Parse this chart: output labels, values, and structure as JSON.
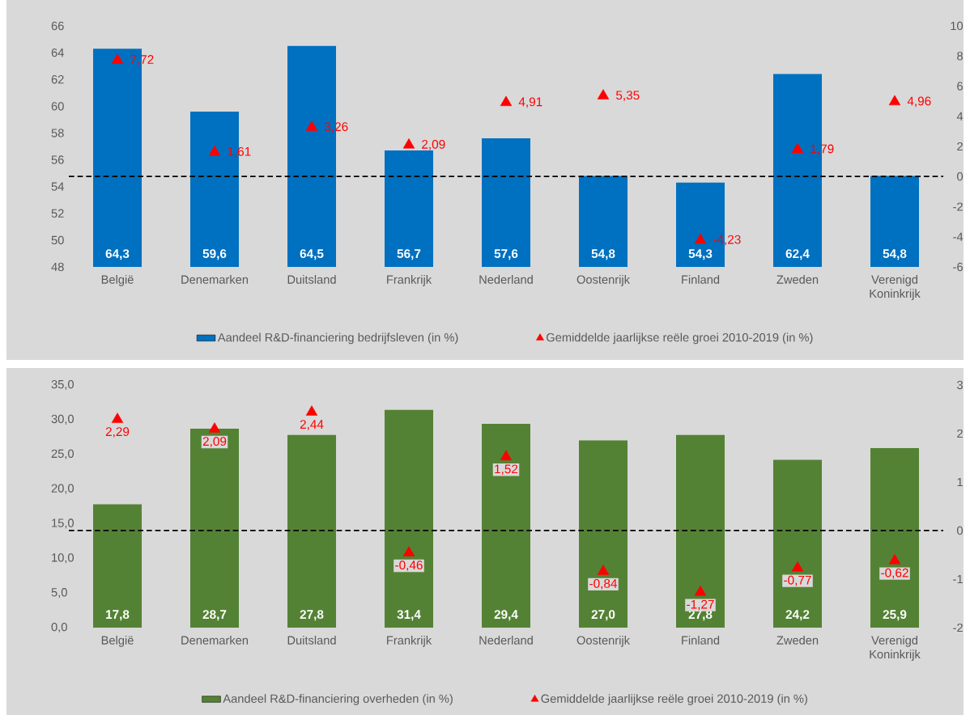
{
  "chart_data": [
    {
      "type": "bar",
      "categories": [
        "België",
        "Denemarken",
        "Duitsland",
        "Frankrijk",
        "Nederland",
        "Oostenrijk",
        "Finland",
        "Zweden",
        "Verenigd Koninkrijk"
      ],
      "series": [
        {
          "name": "Aandeel R&D-financiering bedrijfsleven (in %)",
          "color": "#0070c0",
          "values": [
            64.3,
            59.6,
            64.5,
            56.7,
            57.6,
            54.8,
            54.3,
            62.4,
            54.8
          ],
          "value_labels": [
            "64,3",
            "59,6",
            "64,5",
            "56,7",
            "57,6",
            "54,8",
            "54,3",
            "62,4",
            "54,8"
          ]
        },
        {
          "name": "Gemiddelde jaarlijkse reële groei 2010-2019 (in %)",
          "type": "scatter",
          "axis": "y2",
          "marker": "triangle",
          "color": "#ff0000",
          "values": [
            7.72,
            1.61,
            3.26,
            2.09,
            4.91,
            5.35,
            -4.23,
            1.79,
            4.96
          ],
          "value_labels": [
            "7,72",
            "1,61",
            "3,26",
            "2,09",
            "4,91",
            "5,35",
            "-4,23",
            "1,79",
            "4,96"
          ]
        }
      ],
      "ylim": [
        48,
        66
      ],
      "yticks": [
        48,
        50,
        52,
        54,
        56,
        58,
        60,
        62,
        64,
        66
      ],
      "y2lim": [
        -6,
        10
      ],
      "y2ticks": [
        -6,
        -4,
        -2,
        0,
        2,
        4,
        6,
        8,
        10
      ],
      "ref_lines": [
        {
          "axis": "y2",
          "value": 0,
          "line_style": "dashed",
          "color": "#000000"
        }
      ],
      "legend": "bottom"
    },
    {
      "type": "bar",
      "categories": [
        "België",
        "Denemarken",
        "Duitsland",
        "Frankrijk",
        "Nederland",
        "Oostenrijk",
        "Finland",
        "Zweden",
        "Verenigd Koninkrijk"
      ],
      "series": [
        {
          "name": "Aandeel R&D-financiering overheden (in %)",
          "color": "#548235",
          "values": [
            17.8,
            28.7,
            27.8,
            31.4,
            29.4,
            27.0,
            27.8,
            24.2,
            25.9
          ],
          "value_labels": [
            "17,8",
            "28,7",
            "27,8",
            "31,4",
            "29,4",
            "27,0",
            "27,8",
            "24,2",
            "25,9"
          ]
        },
        {
          "name": "Gemiddelde jaarlijkse reële groei 2010-2019 (in %)",
          "type": "scatter",
          "axis": "y2",
          "marker": "triangle",
          "color": "#ff0000",
          "values": [
            2.29,
            2.09,
            2.44,
            -0.46,
            1.52,
            -0.84,
            -1.27,
            -0.77,
            -0.62
          ],
          "value_labels": [
            "2,29",
            "2,09",
            "2,44",
            "-0,46",
            "1,52",
            "-0,84",
            "-1,27",
            "-0,77",
            "-0,62"
          ]
        }
      ],
      "ylim": [
        0,
        35
      ],
      "yticks": [
        {
          "value": 0,
          "label": "0,0"
        },
        {
          "value": 5,
          "label": "5,0"
        },
        {
          "value": 10,
          "label": "10,0"
        },
        {
          "value": 15,
          "label": "15,0"
        },
        {
          "value": 20,
          "label": "20,0"
        },
        {
          "value": 25,
          "label": "25,0"
        },
        {
          "value": 30,
          "label": "30,0"
        },
        {
          "value": 35,
          "label": "35,0"
        }
      ],
      "y2lim": [
        -2,
        3
      ],
      "y2ticks": [
        -2,
        -1,
        0,
        1,
        2,
        3
      ],
      "ref_lines": [
        {
          "axis": "y2",
          "value": 0,
          "line_style": "dashed",
          "color": "#000000"
        }
      ],
      "legend": "bottom"
    }
  ]
}
